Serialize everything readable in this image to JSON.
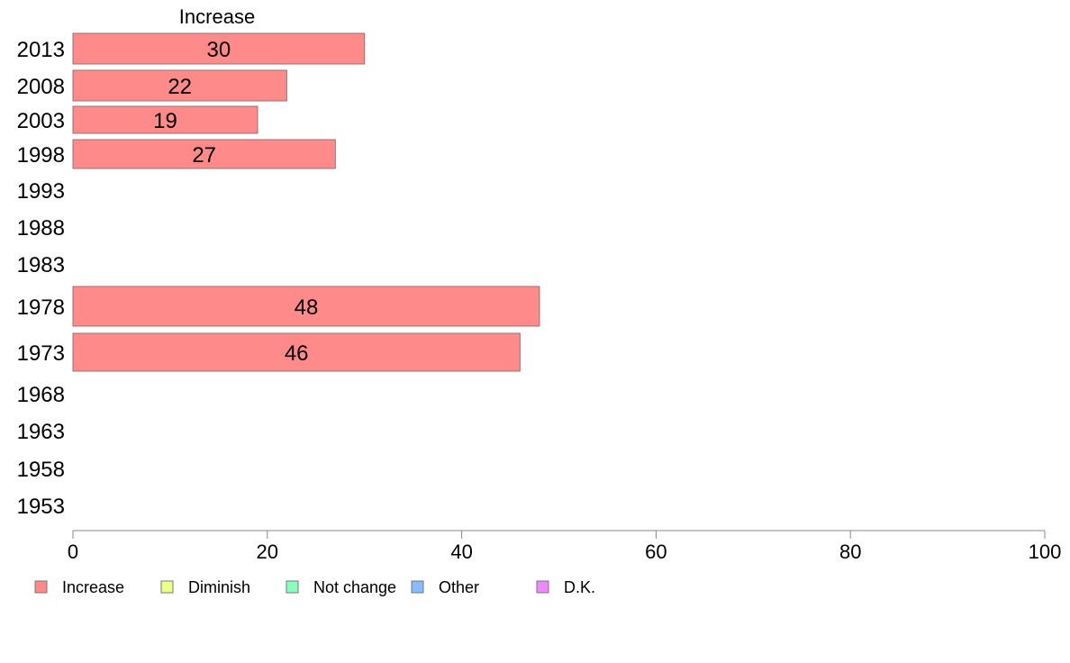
{
  "chart_data": {
    "type": "bar",
    "orientation": "horizontal",
    "column_header": "Increase",
    "categories": [
      "2013",
      "2008",
      "2003",
      "1998",
      "1993",
      "1988",
      "1983",
      "1978",
      "1973",
      "1968",
      "1963",
      "1958",
      "1953"
    ],
    "series": [
      {
        "name": "Increase",
        "color": "#ff8a8a",
        "values": [
          30,
          22,
          19,
          27,
          null,
          null,
          null,
          48,
          46,
          null,
          null,
          null,
          null
        ]
      },
      {
        "name": "Diminish",
        "color": "#eeff88",
        "values": [
          null,
          null,
          null,
          null,
          null,
          null,
          null,
          null,
          null,
          null,
          null,
          null,
          null
        ]
      },
      {
        "name": "Not change",
        "color": "#88ffbb",
        "values": [
          null,
          null,
          null,
          null,
          null,
          null,
          null,
          null,
          null,
          null,
          null,
          null,
          null
        ]
      },
      {
        "name": "Other",
        "color": "#88bbff",
        "values": [
          null,
          null,
          null,
          null,
          null,
          null,
          null,
          null,
          null,
          null,
          null,
          null,
          null
        ]
      },
      {
        "name": "D.K.",
        "color": "#ee88ff",
        "values": [
          null,
          null,
          null,
          null,
          null,
          null,
          null,
          null,
          null,
          null,
          null,
          null,
          null
        ]
      }
    ],
    "xlim": [
      0,
      100
    ],
    "xticks": [
      0,
      20,
      40,
      60,
      80,
      100
    ],
    "legend_position": "bottom",
    "grid": false
  }
}
